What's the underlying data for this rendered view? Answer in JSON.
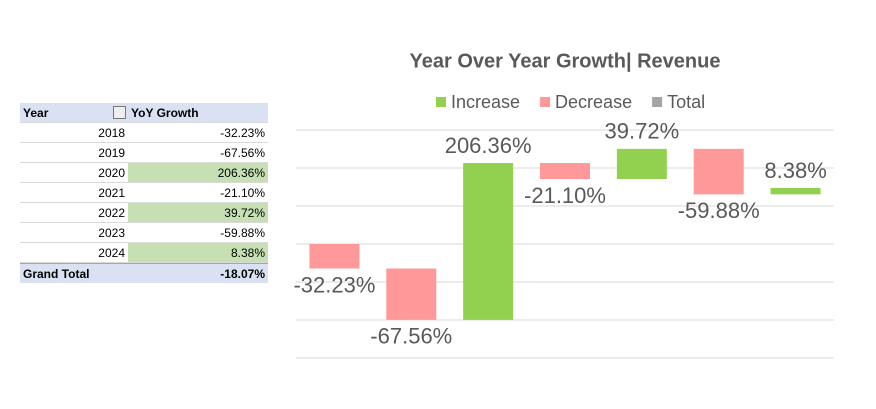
{
  "table": {
    "header": [
      "Year",
      "YoY Growth"
    ],
    "rows": [
      [
        "2018",
        "-32.23%"
      ],
      [
        "2019",
        "-67.56%"
      ],
      [
        "2020",
        "206.36%"
      ],
      [
        "2021",
        "-21.10%"
      ],
      [
        "2022",
        "39.72%"
      ],
      [
        "2023",
        "-59.88%"
      ],
      [
        "2024",
        "8.38%"
      ]
    ],
    "highlighted_rows": [
      2,
      4,
      6
    ],
    "total": [
      "Grand Total",
      "-18.07%"
    ]
  },
  "chart_data": {
    "type": "waterfall",
    "title": "Year Over Year Growth| Revenue",
    "legend": [
      {
        "name": "Increase",
        "color": "#92d050"
      },
      {
        "name": "Decrease",
        "color": "#ff9999"
      },
      {
        "name": "Total",
        "color": "#a5a5a5"
      }
    ],
    "values": [
      -32.23,
      -67.56,
      206.36,
      -21.1,
      39.72,
      -59.88,
      8.38
    ],
    "value_labels": [
      "-32.23%",
      "-67.56%",
      "206.36%",
      "-21.10%",
      "39.72%",
      "-59.88%",
      "8.38%"
    ],
    "ylim": [
      -150,
      150
    ],
    "yticks": [
      -150,
      -100,
      -50,
      0,
      50,
      100,
      150
    ],
    "grid": true
  }
}
